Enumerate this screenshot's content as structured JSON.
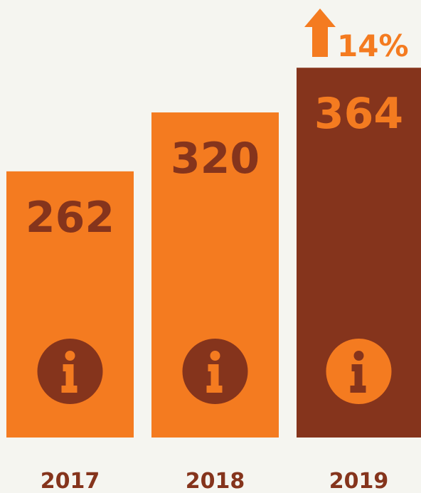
{
  "chart_data": {
    "type": "bar",
    "categories": [
      "2017",
      "2018",
      "2019"
    ],
    "values": [
      262,
      320,
      364
    ],
    "colors": [
      "#f47b20",
      "#f47b20",
      "#85341c"
    ],
    "label_colors": [
      "#85341c",
      "#85341c",
      "#f47b20"
    ],
    "annotation": "14%"
  }
}
